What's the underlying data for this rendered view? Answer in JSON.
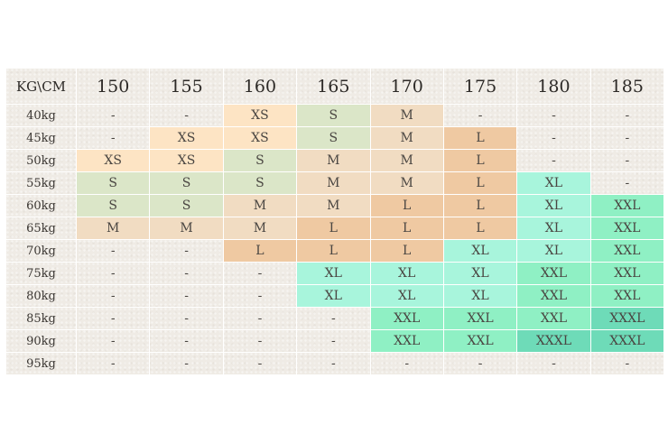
{
  "corner_label": "KG\\CM",
  "heights": [
    "150",
    "155",
    "160",
    "165",
    "170",
    "175",
    "180",
    "185"
  ],
  "rows": [
    {
      "weight": "40kg",
      "sizes": [
        "-",
        "-",
        "XS",
        "S",
        "M",
        "-",
        "-",
        "-"
      ]
    },
    {
      "weight": "45kg",
      "sizes": [
        "-",
        "XS",
        "XS",
        "S",
        "M",
        "L",
        "-",
        "-"
      ]
    },
    {
      "weight": "50kg",
      "sizes": [
        "XS",
        "XS",
        "S",
        "M",
        "M",
        "L",
        "-",
        "-"
      ]
    },
    {
      "weight": "55kg",
      "sizes": [
        "S",
        "S",
        "S",
        "M",
        "M",
        "L",
        "XL",
        "-"
      ]
    },
    {
      "weight": "60kg",
      "sizes": [
        "S",
        "S",
        "M",
        "M",
        "L",
        "L",
        "XL",
        "XXL"
      ]
    },
    {
      "weight": "65kg",
      "sizes": [
        "M",
        "M",
        "M",
        "L",
        "L",
        "L",
        "XL",
        "XXL"
      ]
    },
    {
      "weight": "70kg",
      "sizes": [
        "-",
        "-",
        "L",
        "L",
        "L",
        "XL",
        "XL",
        "XXL"
      ]
    },
    {
      "weight": "75kg",
      "sizes": [
        "-",
        "-",
        "-",
        "XL",
        "XL",
        "XL",
        "XXL",
        "XXL"
      ]
    },
    {
      "weight": "80kg",
      "sizes": [
        "-",
        "-",
        "-",
        "XL",
        "XL",
        "XL",
        "XXL",
        "XXL"
      ]
    },
    {
      "weight": "85kg",
      "sizes": [
        "-",
        "-",
        "-",
        "-",
        "XXL",
        "XXL",
        "XXL",
        "XXXL"
      ]
    },
    {
      "weight": "90kg",
      "sizes": [
        "-",
        "-",
        "-",
        "-",
        "XXL",
        "XXL",
        "XXXL",
        "XXXL"
      ]
    },
    {
      "weight": "95kg",
      "sizes": [
        "-",
        "-",
        "-",
        "-",
        "-",
        "-",
        "-",
        "-"
      ]
    }
  ],
  "size_colors": {
    "XS": "#fde4c4",
    "S": "#dbe6c8",
    "M": "#f1dcc2",
    "L": "#efc9a2",
    "XL": "#a8f5dc",
    "XXL": "#8ff0c4",
    "XXXL": "#6edbb8"
  }
}
